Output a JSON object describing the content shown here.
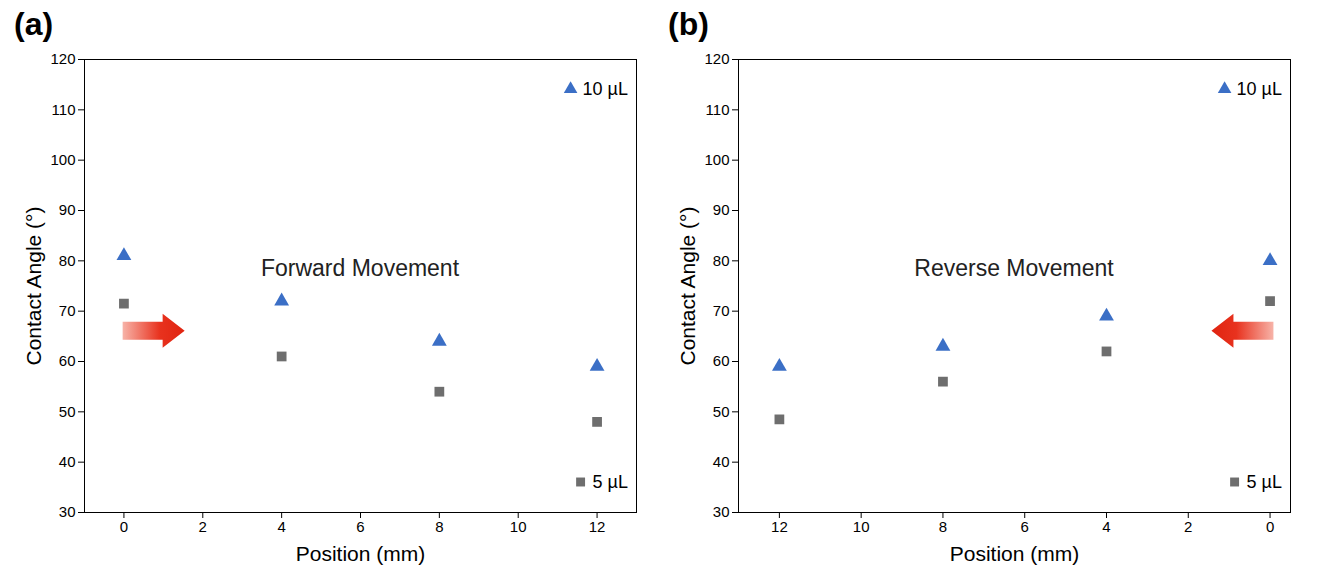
{
  "chart_data": [
    {
      "type": "scatter",
      "panel": "(a)",
      "annotation": "Forward Movement",
      "x_label": "Position (mm)",
      "y_label": "Contact Angle (°)",
      "x": [
        0,
        4,
        8,
        12
      ],
      "series": [
        {
          "name": "10 µL",
          "color": "#3b6fc6",
          "marker": "triangle",
          "values": [
            81,
            72,
            64,
            59
          ]
        },
        {
          "name": "5 µL",
          "color": "#6e6e6e",
          "marker": "square",
          "values": [
            71.5,
            61,
            54,
            48
          ]
        }
      ],
      "xlim": [
        -1,
        13
      ],
      "xticks": [
        0,
        2,
        4,
        6,
        8,
        10,
        12
      ],
      "ylim": [
        30,
        120
      ],
      "yticks": [
        30,
        40,
        50,
        60,
        70,
        80,
        90,
        100,
        110,
        120
      ],
      "grid": false,
      "legend": "right"
    },
    {
      "type": "scatter",
      "panel": "(b)",
      "annotation": "Reverse Movement",
      "x_label": "Position (mm)",
      "y_label": "Contact Angle (°)",
      "x": [
        12,
        8,
        4,
        0
      ],
      "series": [
        {
          "name": "10 µL",
          "color": "#3b6fc6",
          "marker": "triangle",
          "values": [
            59,
            63,
            69,
            80
          ]
        },
        {
          "name": "5 µL",
          "color": "#6e6e6e",
          "marker": "square",
          "values": [
            48.5,
            56,
            62,
            72
          ]
        }
      ],
      "xlim": [
        13,
        -0.5
      ],
      "xticks": [
        0,
        2,
        4,
        6,
        8,
        10,
        12
      ],
      "ylim": [
        30,
        120
      ],
      "yticks": [
        30,
        40,
        50,
        60,
        70,
        80,
        90,
        100,
        110,
        120
      ],
      "grid": false,
      "legend": "right"
    }
  ]
}
